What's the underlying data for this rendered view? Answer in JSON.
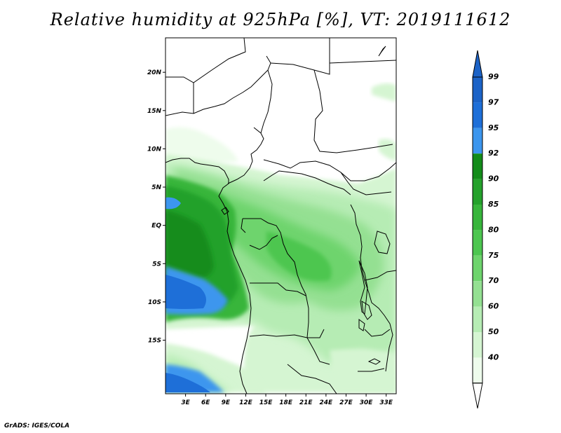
{
  "title": "Relative humidity at 925hPa [%], VT: 2019111612",
  "footer": "GrADS: IGES/COLA",
  "map": {
    "projection": "lat-lon",
    "lon_range": [
      0,
      34.5
    ],
    "lat_range": [
      -22,
      24.5
    ],
    "lat_ticks": [
      {
        "label": "20N",
        "value": 20
      },
      {
        "label": "15N",
        "value": 15
      },
      {
        "label": "10N",
        "value": 10
      },
      {
        "label": "5N",
        "value": 5
      },
      {
        "label": "EQ",
        "value": 0
      },
      {
        "label": "5S",
        "value": -5
      },
      {
        "label": "10S",
        "value": -10
      },
      {
        "label": "15S",
        "value": -15
      }
    ],
    "lon_ticks": [
      {
        "label": "3E",
        "value": 3
      },
      {
        "label": "6E",
        "value": 6
      },
      {
        "label": "9E",
        "value": 9
      },
      {
        "label": "12E",
        "value": 12
      },
      {
        "label": "15E",
        "value": 15
      },
      {
        "label": "18E",
        "value": 18
      },
      {
        "label": "21E",
        "value": 21
      },
      {
        "label": "24E",
        "value": 24
      },
      {
        "label": "27E",
        "value": 27
      },
      {
        "label": "30E",
        "value": 30
      },
      {
        "label": "33E",
        "value": 33
      }
    ]
  },
  "colorbar": {
    "levels": [
      {
        "label": "99",
        "color": "#1c63c7"
      },
      {
        "label": "97",
        "color": "#1e6fd8"
      },
      {
        "label": "95",
        "color": "#3c96ee"
      },
      {
        "label": "92",
        "color": "#138c1a"
      },
      {
        "label": "90",
        "color": "#24a12b"
      },
      {
        "label": "85",
        "color": "#37b53b"
      },
      {
        "label": "80",
        "color": "#4dc650"
      },
      {
        "label": "75",
        "color": "#6ed46d"
      },
      {
        "label": "70",
        "color": "#94e092"
      },
      {
        "label": "60",
        "color": "#b6ecb4"
      },
      {
        "label": "50",
        "color": "#d5f5d2"
      },
      {
        "label": "40",
        "color": "#eefcec"
      }
    ],
    "top_arrow_color": "#1c63c7",
    "bottom_arrow_color": "#ffffff"
  }
}
